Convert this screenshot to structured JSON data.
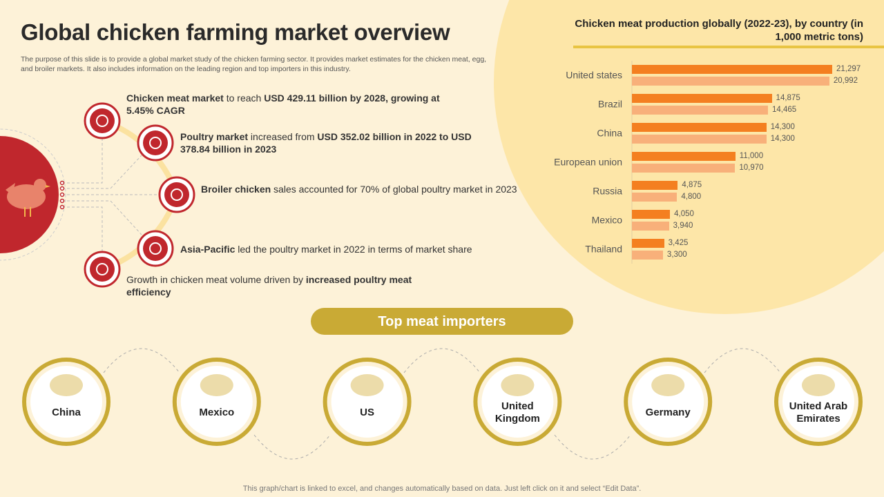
{
  "header": {
    "title": "Global chicken farming market overview",
    "description": "The purpose of this slide is to provide a global market study of the chicken farming sector. It provides market estimates for the chicken meat, egg, and broiler markets. It also includes information on the leading region and top importers in this industry."
  },
  "points": [
    {
      "parts": [
        {
          "text": "Chicken meat market",
          "bold": true
        },
        {
          "text": " to reach ",
          "bold": false
        },
        {
          "text": "USD 429.11 billion by 2028, growing at 5.45% CAGR",
          "bold": true
        }
      ]
    },
    {
      "parts": [
        {
          "text": "Poultry market",
          "bold": true
        },
        {
          "text": " increased from ",
          "bold": false
        },
        {
          "text": "USD 352.02 billion in 2022 to USD 378.84 billion in 2023",
          "bold": true
        }
      ]
    },
    {
      "parts": [
        {
          "text": "Broiler chicken",
          "bold": true
        },
        {
          "text": " sales accounted for 70% of global poultry market in 2023",
          "bold": false
        }
      ]
    },
    {
      "parts": [
        {
          "text": "Asia-Pacific",
          "bold": true
        },
        {
          "text": " led the poultry market in 2022 in terms of market share",
          "bold": false
        }
      ]
    },
    {
      "parts": [
        {
          "text": "Growth in chicken meat volume driven by ",
          "bold": false
        },
        {
          "text": "increased poultry meat efficiency",
          "bold": true
        }
      ]
    }
  ],
  "chart_data": {
    "type": "bar",
    "orientation": "horizontal",
    "title": "Chicken meat production globally (2022-23), by country (in 1,000 metric tons)",
    "categories": [
      "United states",
      "Brazil",
      "China",
      "European union",
      "Russia",
      "Mexico",
      "Thailand"
    ],
    "series": [
      {
        "color": "#f47f20",
        "values": [
          21297,
          14875,
          14300,
          11000,
          4875,
          4050,
          3425
        ],
        "value_labels": [
          "21,297",
          "14,875",
          "14,300",
          "11,000",
          "4,875",
          "4,050",
          "3,425"
        ]
      },
      {
        "color": "#f8b07a",
        "values": [
          20992,
          14465,
          14300,
          10970,
          4800,
          3940,
          3300
        ],
        "value_labels": [
          "20,992",
          "14,465",
          "14,300",
          "10,970",
          "4,800",
          "3,940",
          "3,300"
        ]
      }
    ]
  },
  "importers": {
    "title": "Top meat importers",
    "countries": [
      "China",
      "Mexico",
      "US",
      "United Kingdom",
      "Germany",
      "United Arab Emirates"
    ]
  },
  "footer": "This graph/chart is linked to excel, and changes automatically based on data. Just left click on it and select “Edit Data”."
}
